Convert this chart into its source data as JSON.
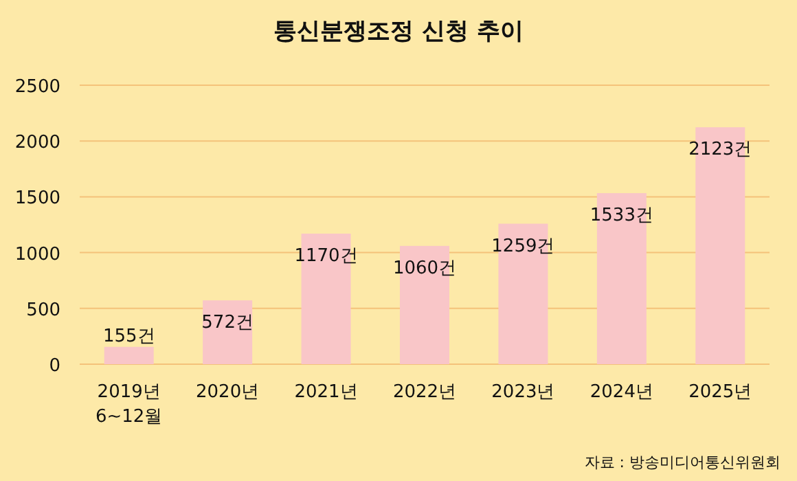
{
  "chart_data": {
    "type": "bar",
    "title": "통신분쟁조정 신청 추이",
    "categories": [
      "2019년 6~12월",
      "2020년",
      "2021년",
      "2022년",
      "2023년",
      "2024년",
      "2025년"
    ],
    "values": [
      155,
      572,
      1170,
      1060,
      1259,
      1533,
      2123
    ],
    "value_labels": [
      "155건",
      "572건",
      "1170건",
      "1060건",
      "1259건",
      "1533건",
      "2123건"
    ],
    "color": "#f9c6c8",
    "ylim": [
      0,
      2500
    ],
    "yticks": [
      0,
      500,
      1000,
      1500,
      2000,
      2500
    ],
    "grid": "y",
    "annotations": [
      "자료 : 방송미디어통신위원회"
    ]
  }
}
